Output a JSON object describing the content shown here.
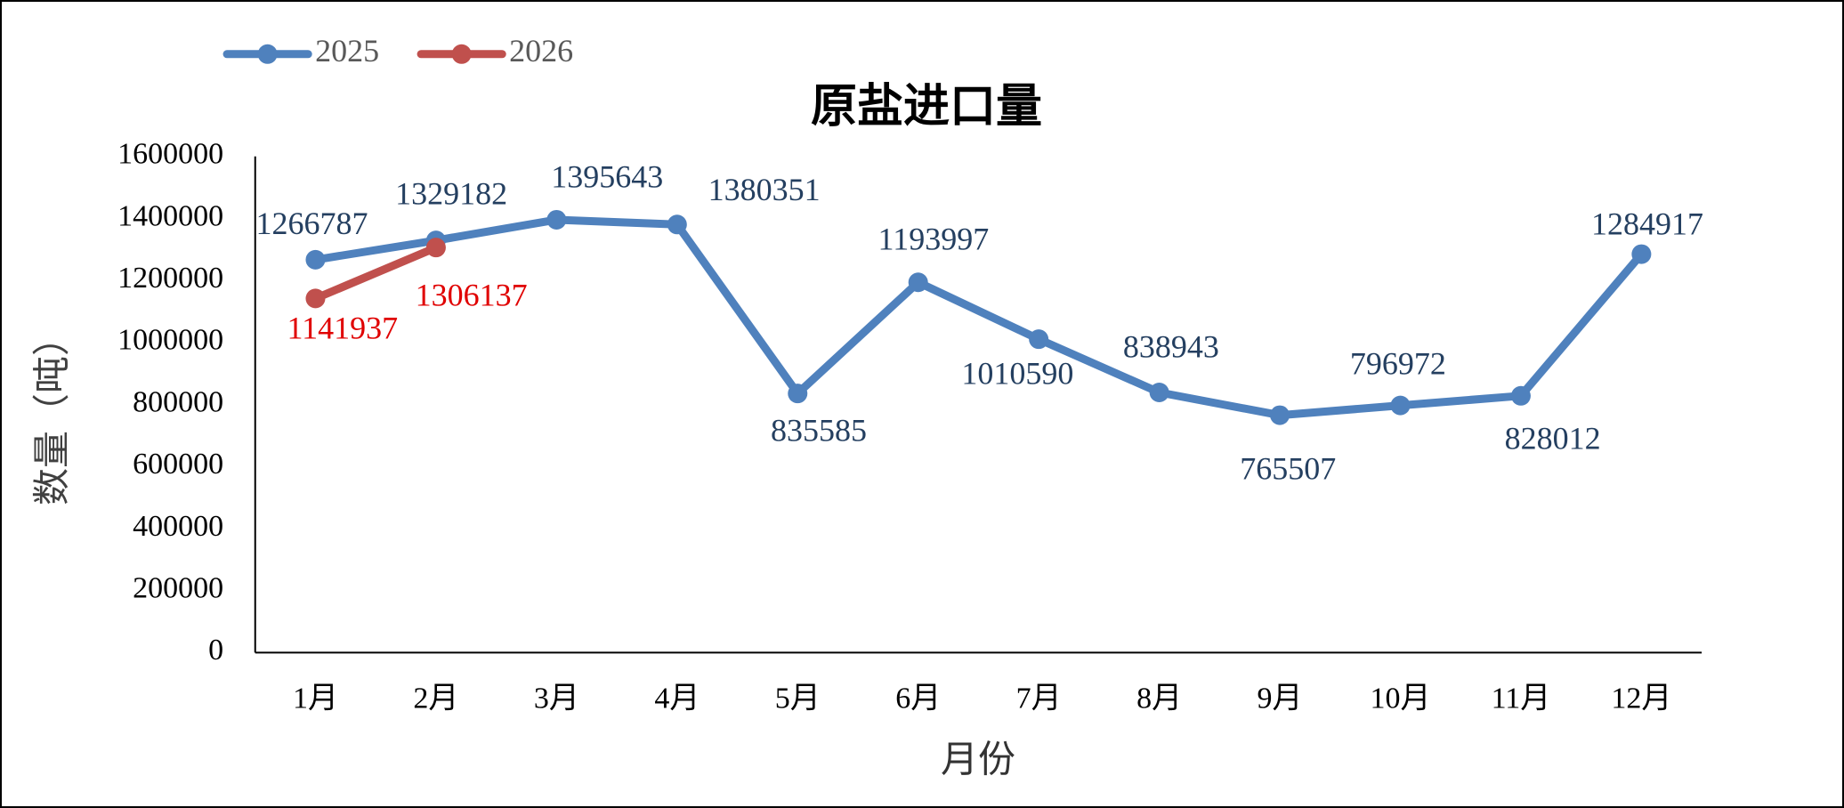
{
  "chart_data": {
    "type": "line",
    "title": "原盐进口量",
    "x_label": "月份",
    "y_label": "数量（吨）",
    "categories": [
      "1月",
      "2月",
      "3月",
      "4月",
      "5月",
      "6月",
      "7月",
      "8月",
      "9月",
      "10月",
      "11月",
      "12月"
    ],
    "series": [
      {
        "name": "2025",
        "color": "#4f81bd",
        "label_color": "#243f60",
        "values": [
          1266787,
          1329182,
          1395643,
          1380351,
          835585,
          1193997,
          1010590,
          838943,
          765507,
          796972,
          828012,
          1284917
        ]
      },
      {
        "name": "2026",
        "color": "#c0504d",
        "label_color": "#e00000",
        "values": [
          1141937,
          1306137,
          null,
          null,
          null,
          null,
          null,
          null,
          null,
          null,
          null,
          null
        ]
      }
    ],
    "ylim": [
      0,
      1600000
    ],
    "yticks": [
      0,
      200000,
      400000,
      600000,
      800000,
      1000000,
      1200000,
      1400000,
      1600000
    ],
    "grid": false,
    "legend": "top-left"
  }
}
